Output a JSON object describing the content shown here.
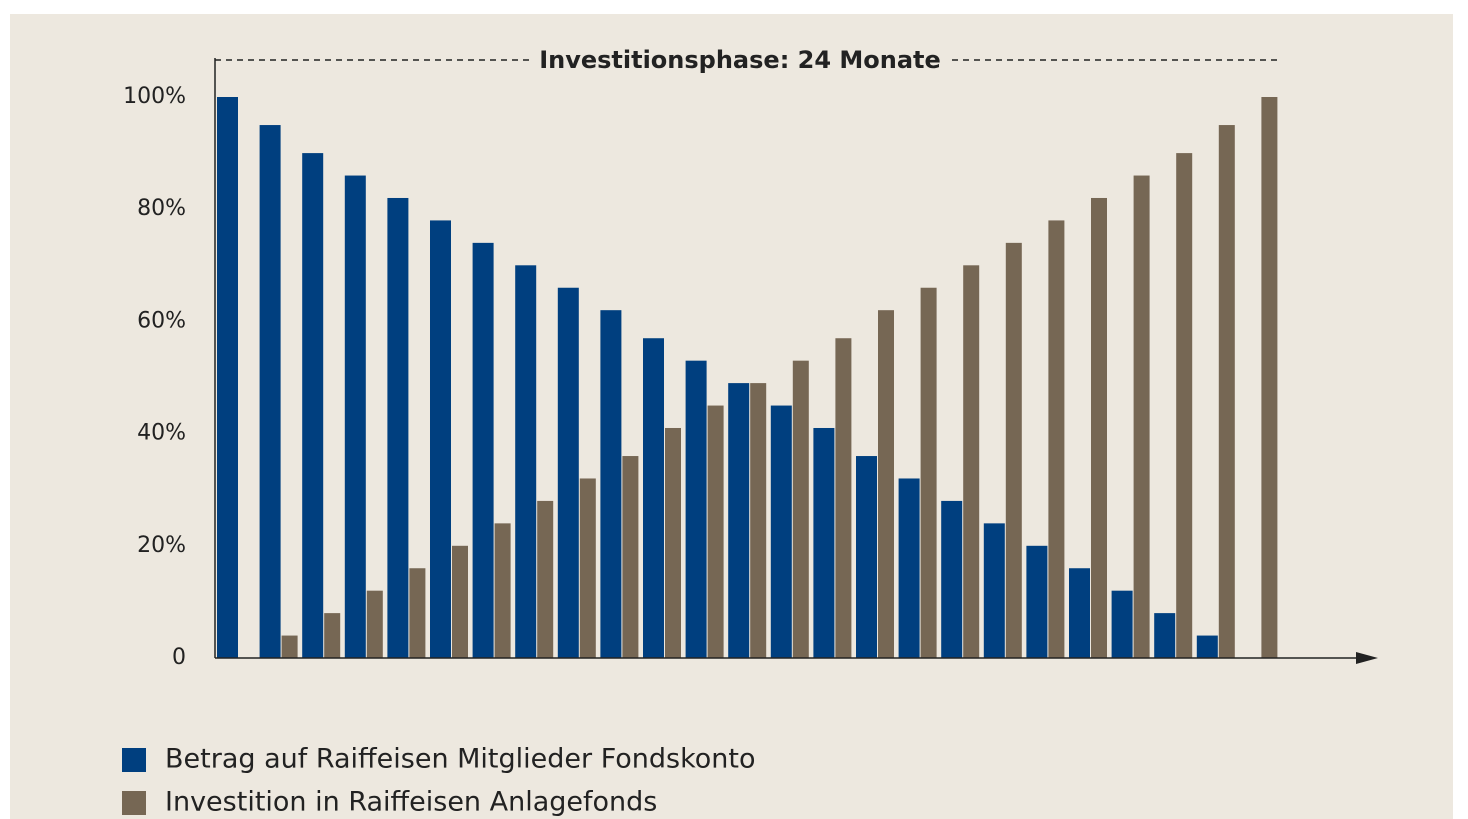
{
  "chart_data": {
    "type": "bar",
    "title": "Investitionsphase: 24 Monate",
    "categories": [
      null,
      null,
      null,
      null,
      null,
      null,
      null,
      null,
      null,
      null,
      null,
      null,
      null,
      null,
      null,
      null,
      null,
      null,
      null,
      null,
      null,
      null,
      null,
      null,
      null
    ],
    "series": [
      {
        "name": "Betrag auf Raiffeisen Mitglieder Fondskonto",
        "color": "#003f7f",
        "values": [
          100,
          95,
          90,
          86,
          82,
          78,
          74,
          70,
          66,
          62,
          57,
          53,
          49,
          45,
          41,
          36,
          32,
          28,
          24,
          20,
          16,
          12,
          8,
          4,
          0
        ]
      },
      {
        "name": "Investition in Raiffeisen Anlagefonds",
        "color": "#766754",
        "values": [
          0,
          4,
          8,
          12,
          16,
          20,
          24,
          28,
          32,
          36,
          41,
          45,
          49,
          53,
          57,
          62,
          66,
          70,
          74,
          78,
          82,
          86,
          90,
          95,
          100
        ]
      }
    ],
    "ylim": [
      0,
      100
    ],
    "yticks": [
      0,
      {
        "value": 20,
        "label": "20%"
      },
      {
        "value": 40,
        "label": "40%"
      },
      {
        "value": 60,
        "label": "60%"
      },
      {
        "value": 80,
        "label": "80%"
      },
      {
        "value": 100,
        "label": "100%"
      }
    ],
    "grid": false
  }
}
